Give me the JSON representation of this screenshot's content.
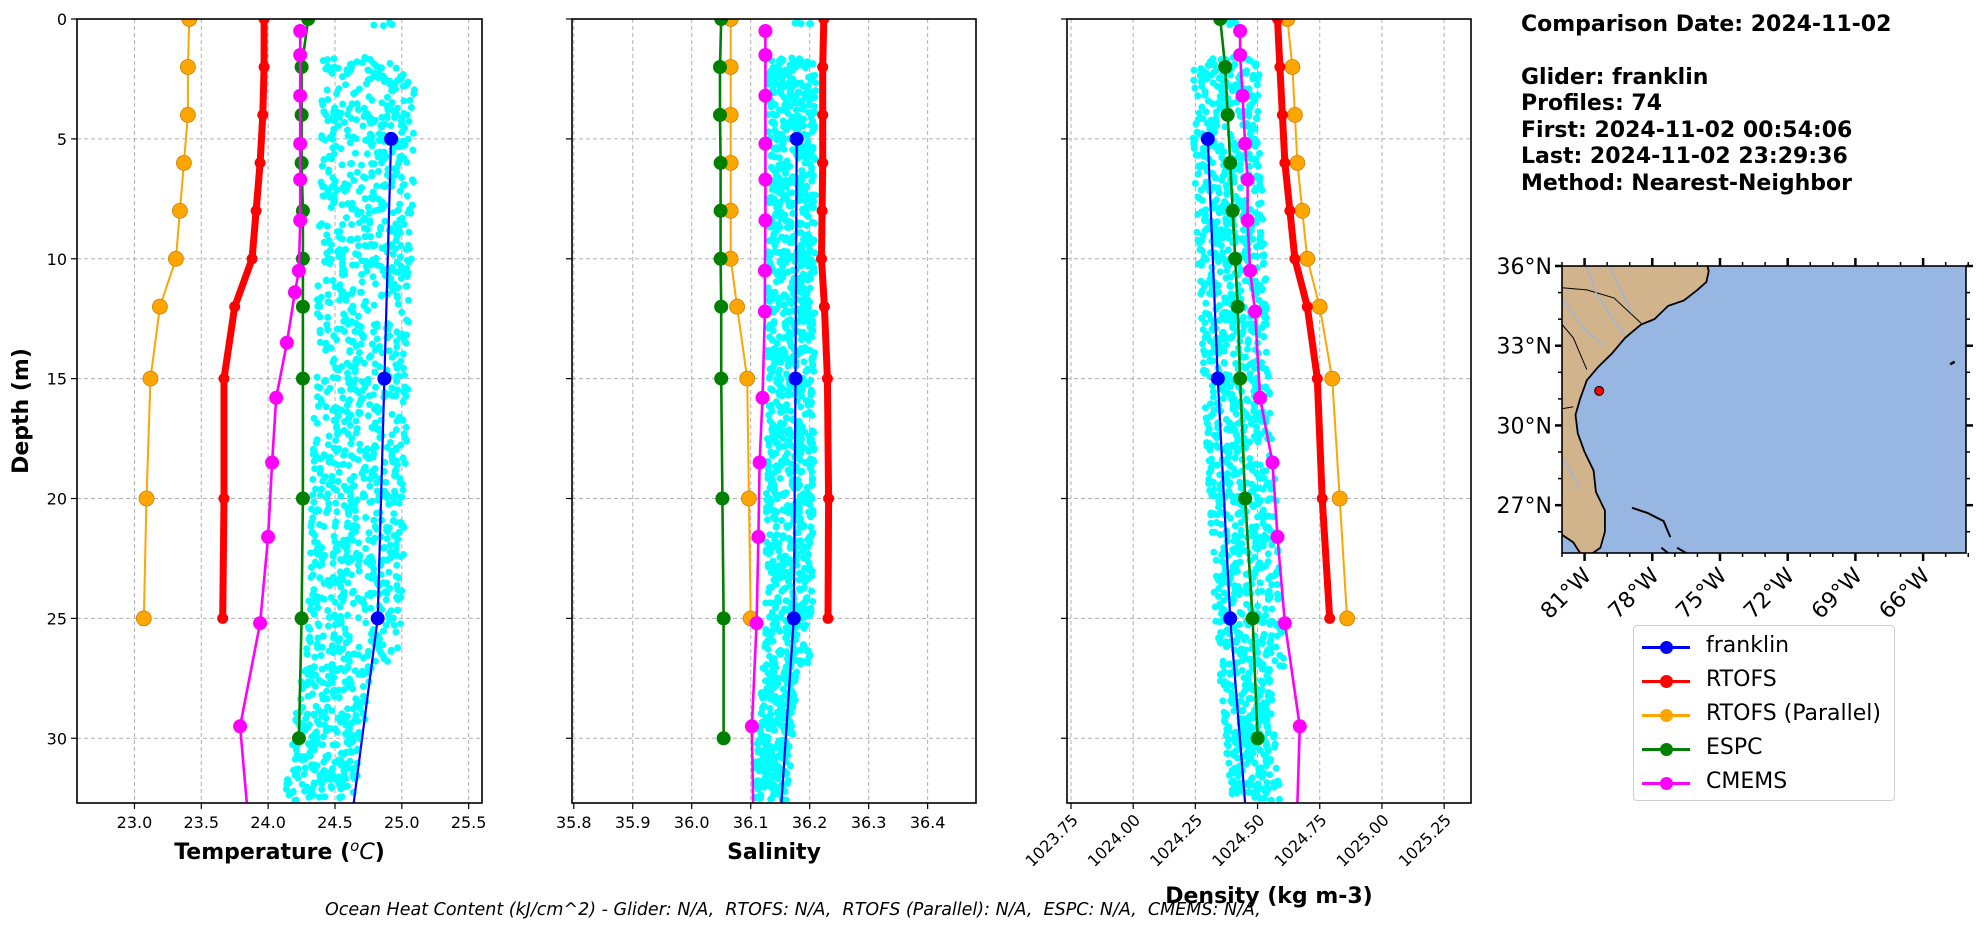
{
  "info": {
    "comparison_date": "Comparison Date: 2024-11-02",
    "glider": "Glider: franklin",
    "profiles": "Profiles: 74",
    "first": "First: 2024-11-02 00:54:06",
    "last": "Last: 2024-11-02 23:29:36",
    "method": "Method: Nearest-Neighbor"
  },
  "footer": "Ocean Heat Content (kJ/cm^2) - Glider: N/A,  RTOFS: N/A,  RTOFS (Parallel): N/A,  ESPC: N/A,  CMEMS: N/A,",
  "legend": [
    {
      "name": "franklin",
      "color": "#0000ff"
    },
    {
      "name": "RTOFS",
      "color": "#ff0000"
    },
    {
      "name": "RTOFS (Parallel)",
      "color": "#ffa500"
    },
    {
      "name": "ESPC",
      "color": "#008000"
    },
    {
      "name": "CMEMS",
      "color": "#ff00ff"
    }
  ],
  "colors": {
    "glider_scatter": "#00ffff",
    "land": "#d2b48c",
    "ocean": "#97b6e1",
    "river": "#97b6e1",
    "grid": "#b0b0b0"
  },
  "chart_data": [
    {
      "type": "line",
      "title": "",
      "xlabel": "Temperature (°C)",
      "ylabel": "Depth (m)",
      "xlim": [
        22.57,
        25.6
      ],
      "ylim": [
        32.7,
        0
      ],
      "xticks": [
        "23.0",
        "23.5",
        "24.0",
        "24.5",
        "25.0",
        "25.5"
      ],
      "yticks": [
        "0",
        "5",
        "10",
        "15",
        "20",
        "25",
        "30"
      ],
      "grid": true,
      "glider_scatter_range": {
        "depth": [
          0,
          32.7
        ],
        "x_min": 24.4,
        "x_max": 25.1
      },
      "series": [
        {
          "name": "RTOFS (Parallel)",
          "depth": [
            0,
            2,
            4,
            6,
            8,
            10,
            12,
            15,
            20,
            25
          ],
          "values": [
            23.41,
            23.4,
            23.4,
            23.37,
            23.34,
            23.31,
            23.19,
            23.12,
            23.09,
            23.07
          ]
        },
        {
          "name": "RTOFS",
          "depth": [
            0,
            2,
            4,
            6,
            8,
            10,
            12,
            15,
            20,
            25
          ],
          "values": [
            23.97,
            23.97,
            23.96,
            23.94,
            23.91,
            23.88,
            23.75,
            23.67,
            23.67,
            23.66
          ]
        },
        {
          "name": "CMEMS",
          "depth": [
            0.5,
            1.5,
            3.2,
            5.2,
            6.7,
            8.4,
            10.5,
            11.4,
            13.5,
            15.8,
            18.5,
            21.6,
            25.2,
            29.5,
            32.7
          ],
          "values": [
            24.24,
            24.24,
            24.24,
            24.24,
            24.24,
            24.24,
            24.23,
            24.2,
            24.14,
            24.06,
            24.03,
            24.0,
            23.94,
            23.79,
            23.84
          ]
        },
        {
          "name": "ESPC",
          "depth": [
            0,
            2,
            4,
            6,
            8,
            10,
            12,
            15,
            20,
            25,
            30
          ],
          "values": [
            24.3,
            24.25,
            24.25,
            24.25,
            24.26,
            24.26,
            24.26,
            24.26,
            24.26,
            24.25,
            24.23
          ]
        },
        {
          "name": "franklin",
          "depth": [
            5,
            15,
            25,
            32.7
          ],
          "values": [
            24.92,
            24.87,
            24.82,
            24.64
          ]
        }
      ]
    },
    {
      "type": "line",
      "title": "",
      "xlabel": "Salinity",
      "ylabel": "",
      "xlim": [
        35.797,
        36.482
      ],
      "ylim": [
        32.7,
        0
      ],
      "xticks": [
        "35.8",
        "35.9",
        "36.0",
        "36.1",
        "36.2",
        "36.3",
        "36.4"
      ],
      "yticks": [
        "0",
        "5",
        "10",
        "15",
        "20",
        "25",
        "30"
      ],
      "grid": true,
      "glider_scatter_range": {
        "depth": [
          0,
          32.7
        ],
        "x_min": 36.13,
        "x_max": 36.21
      },
      "series": [
        {
          "name": "ESPC",
          "depth": [
            0,
            2,
            4,
            6,
            8,
            10,
            12,
            15,
            20,
            25,
            30
          ],
          "values": [
            36.05,
            36.048,
            36.048,
            36.049,
            36.049,
            36.049,
            36.05,
            36.05,
            36.052,
            36.054,
            36.054
          ]
        },
        {
          "name": "RTOFS (Parallel)",
          "depth": [
            0,
            2,
            4,
            6,
            8,
            10,
            12,
            15,
            20,
            25
          ],
          "values": [
            36.066,
            36.066,
            36.066,
            36.066,
            36.066,
            36.066,
            36.077,
            36.094,
            36.097,
            36.1
          ]
        },
        {
          "name": "CMEMS",
          "depth": [
            0.5,
            1.5,
            3.2,
            5.2,
            6.7,
            8.4,
            10.5,
            12.2,
            15.8,
            18.5,
            21.6,
            25.2,
            29.5,
            32.7
          ],
          "values": [
            36.125,
            36.125,
            36.125,
            36.125,
            36.125,
            36.125,
            36.124,
            36.124,
            36.12,
            36.115,
            36.113,
            36.11,
            36.102,
            36.104
          ]
        },
        {
          "name": "RTOFS",
          "depth": [
            0,
            2,
            4,
            6,
            8,
            10,
            12,
            15,
            20,
            25
          ],
          "values": [
            36.224,
            36.222,
            36.222,
            36.222,
            36.221,
            36.22,
            36.225,
            36.23,
            36.232,
            36.231
          ]
        },
        {
          "name": "franklin",
          "depth": [
            5,
            15,
            25,
            32.7
          ],
          "values": [
            36.178,
            36.176,
            36.173,
            36.152
          ]
        }
      ]
    },
    {
      "type": "line",
      "title": "",
      "xlabel": "Density (kg m-3)",
      "ylabel": "",
      "xlim": [
        1023.734,
        1025.358
      ],
      "ylim": [
        32.7,
        0
      ],
      "xticks": [
        "1023.75",
        "1024.00",
        "1024.25",
        "1024.50",
        "1024.75",
        "1025.00",
        "1025.25"
      ],
      "yticks": [
        "0",
        "5",
        "10",
        "15",
        "20",
        "25",
        "30"
      ],
      "grid": true,
      "glider_scatter_range": {
        "depth": [
          0,
          32.7
        ],
        "x_min": 1024.24,
        "x_max": 1024.51
      },
      "series": [
        {
          "name": "ESPC",
          "depth": [
            0,
            2,
            4,
            6,
            8,
            10,
            12,
            15,
            20,
            25,
            30
          ],
          "values": [
            1024.35,
            1024.37,
            1024.38,
            1024.39,
            1024.4,
            1024.41,
            1024.42,
            1024.43,
            1024.45,
            1024.48,
            1024.5
          ]
        },
        {
          "name": "CMEMS",
          "depth": [
            0.5,
            1.5,
            3.2,
            5.2,
            6.7,
            8.4,
            10.5,
            12.2,
            15.8,
            18.5,
            21.6,
            25.2,
            29.5,
            32.7
          ],
          "values": [
            1024.43,
            1024.43,
            1024.44,
            1024.45,
            1024.46,
            1024.46,
            1024.47,
            1024.49,
            1024.51,
            1024.56,
            1024.58,
            1024.61,
            1024.67,
            1024.66
          ]
        },
        {
          "name": "RTOFS",
          "depth": [
            0,
            2,
            4,
            6,
            8,
            10,
            12,
            15,
            20,
            25
          ],
          "values": [
            1024.58,
            1024.59,
            1024.6,
            1024.61,
            1024.63,
            1024.65,
            1024.7,
            1024.74,
            1024.76,
            1024.79
          ]
        },
        {
          "name": "RTOFS (Parallel)",
          "depth": [
            0,
            2,
            4,
            6,
            8,
            10,
            12,
            15,
            20,
            25
          ],
          "values": [
            1024.62,
            1024.64,
            1024.65,
            1024.66,
            1024.68,
            1024.7,
            1024.75,
            1024.8,
            1024.83,
            1024.86
          ]
        },
        {
          "name": "franklin",
          "depth": [
            5,
            15,
            25,
            32.7
          ],
          "values": [
            1024.3,
            1024.34,
            1024.39,
            1024.45
          ]
        }
      ]
    }
  ],
  "map": {
    "lon_range": [
      -82.0,
      -64.1
    ],
    "lat_range": [
      25.2,
      36.0
    ],
    "lat_ticks": [
      "36°N",
      "33°N",
      "30°N",
      "27°N"
    ],
    "lat_tick_values": [
      36,
      33,
      30,
      27
    ],
    "lon_ticks": [
      "81°W",
      "78°W",
      "75°W",
      "72°W",
      "69°W",
      "66°W"
    ],
    "lon_tick_values": [
      -81,
      -78,
      -75,
      -72,
      -69,
      -66
    ],
    "glider_position": {
      "lon": -80.35,
      "lat": 31.3,
      "color": "#ff0000"
    }
  }
}
